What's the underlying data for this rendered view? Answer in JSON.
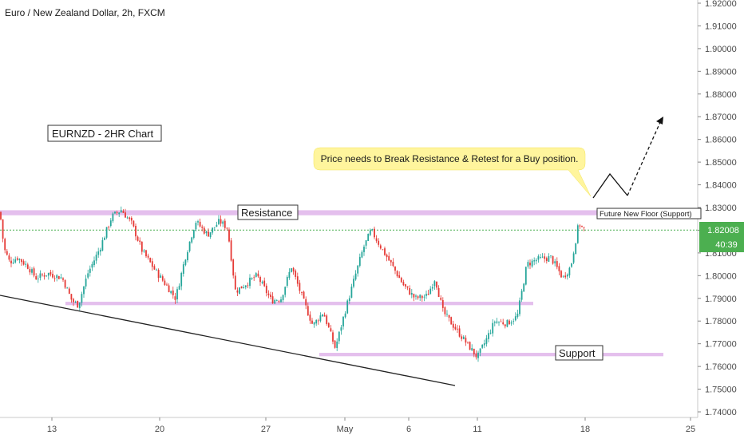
{
  "header": {
    "title": "Euro / New Zealand Dollar, 2h, FXCM"
  },
  "chart_data": {
    "type": "candlestick",
    "symbol": "EURNZD",
    "timeframe": "2h",
    "ylim": [
      1.735,
      1.925
    ],
    "y_ticks": [
      "1.74000",
      "1.75000",
      "1.76000",
      "1.77000",
      "1.78000",
      "1.79000",
      "1.80000",
      "1.81000",
      "1.82000",
      "1.83000",
      "1.84000",
      "1.85000",
      "1.86000",
      "1.87000",
      "1.88000",
      "1.89000",
      "1.90000",
      "1.91000",
      "1.92000"
    ],
    "x_ticks": [
      "13",
      "20",
      "27",
      "May",
      "6",
      "11",
      "18",
      "25"
    ],
    "last_price": "1.82008",
    "countdown": "40:39",
    "series": [
      {
        "t": 0,
        "c": 1.828
      },
      {
        "t": 5,
        "c": 1.812
      },
      {
        "t": 12,
        "c": 1.806
      },
      {
        "t": 22,
        "c": 1.808
      },
      {
        "t": 35,
        "c": 1.804
      },
      {
        "t": 45,
        "c": 1.799
      },
      {
        "t": 60,
        "c": 1.801
      },
      {
        "t": 78,
        "c": 1.799
      },
      {
        "t": 90,
        "c": 1.789
      },
      {
        "t": 98,
        "c": 1.787
      },
      {
        "t": 110,
        "c": 1.801
      },
      {
        "t": 125,
        "c": 1.812
      },
      {
        "t": 140,
        "c": 1.826
      },
      {
        "t": 152,
        "c": 1.829
      },
      {
        "t": 165,
        "c": 1.823
      },
      {
        "t": 178,
        "c": 1.811
      },
      {
        "t": 195,
        "c": 1.802
      },
      {
        "t": 210,
        "c": 1.795
      },
      {
        "t": 220,
        "c": 1.79
      },
      {
        "t": 232,
        "c": 1.808
      },
      {
        "t": 245,
        "c": 1.824
      },
      {
        "t": 260,
        "c": 1.818
      },
      {
        "t": 275,
        "c": 1.824
      },
      {
        "t": 285,
        "c": 1.821
      },
      {
        "t": 295,
        "c": 1.793
      },
      {
        "t": 310,
        "c": 1.797
      },
      {
        "t": 322,
        "c": 1.8
      },
      {
        "t": 340,
        "c": 1.789
      },
      {
        "t": 352,
        "c": 1.79
      },
      {
        "t": 365,
        "c": 1.804
      },
      {
        "t": 380,
        "c": 1.789
      },
      {
        "t": 392,
        "c": 1.778
      },
      {
        "t": 405,
        "c": 1.784
      },
      {
        "t": 420,
        "c": 1.768
      },
      {
        "t": 432,
        "c": 1.784
      },
      {
        "t": 445,
        "c": 1.8
      },
      {
        "t": 455,
        "c": 1.812
      },
      {
        "t": 465,
        "c": 1.82
      },
      {
        "t": 478,
        "c": 1.812
      },
      {
        "t": 492,
        "c": 1.804
      },
      {
        "t": 505,
        "c": 1.796
      },
      {
        "t": 520,
        "c": 1.79
      },
      {
        "t": 535,
        "c": 1.791
      },
      {
        "t": 545,
        "c": 1.799
      },
      {
        "t": 555,
        "c": 1.784
      },
      {
        "t": 570,
        "c": 1.777
      },
      {
        "t": 585,
        "c": 1.77
      },
      {
        "t": 598,
        "c": 1.764
      },
      {
        "t": 608,
        "c": 1.771
      },
      {
        "t": 620,
        "c": 1.78
      },
      {
        "t": 635,
        "c": 1.779
      },
      {
        "t": 648,
        "c": 1.782
      },
      {
        "t": 660,
        "c": 1.805
      },
      {
        "t": 672,
        "c": 1.807
      },
      {
        "t": 690,
        "c": 1.808
      },
      {
        "t": 705,
        "c": 1.799
      },
      {
        "t": 715,
        "c": 1.804
      },
      {
        "t": 725,
        "c": 1.823
      },
      {
        "t": 733,
        "c": 1.82
      }
    ],
    "levels": {
      "resistance": [
        1.8266,
        1.8288
      ],
      "mid_support": [
        1.787,
        1.7885
      ],
      "support": [
        1.7645,
        1.766
      ],
      "current_line": 1.82008
    }
  },
  "annotations": {
    "chart_label": "EURNZD - 2HR Chart",
    "callout": "Price needs to Break Resistance & Retest for a Buy position.",
    "resistance_label": "Resistance",
    "support_label": "Support",
    "future_floor_label": "Future New Floor (Support)"
  },
  "colors": {
    "up": "#26a69a",
    "down": "#e53935",
    "zone": "#dfb4ea",
    "callout_bg": "#fff59d",
    "price_tag": "#4caf50"
  }
}
